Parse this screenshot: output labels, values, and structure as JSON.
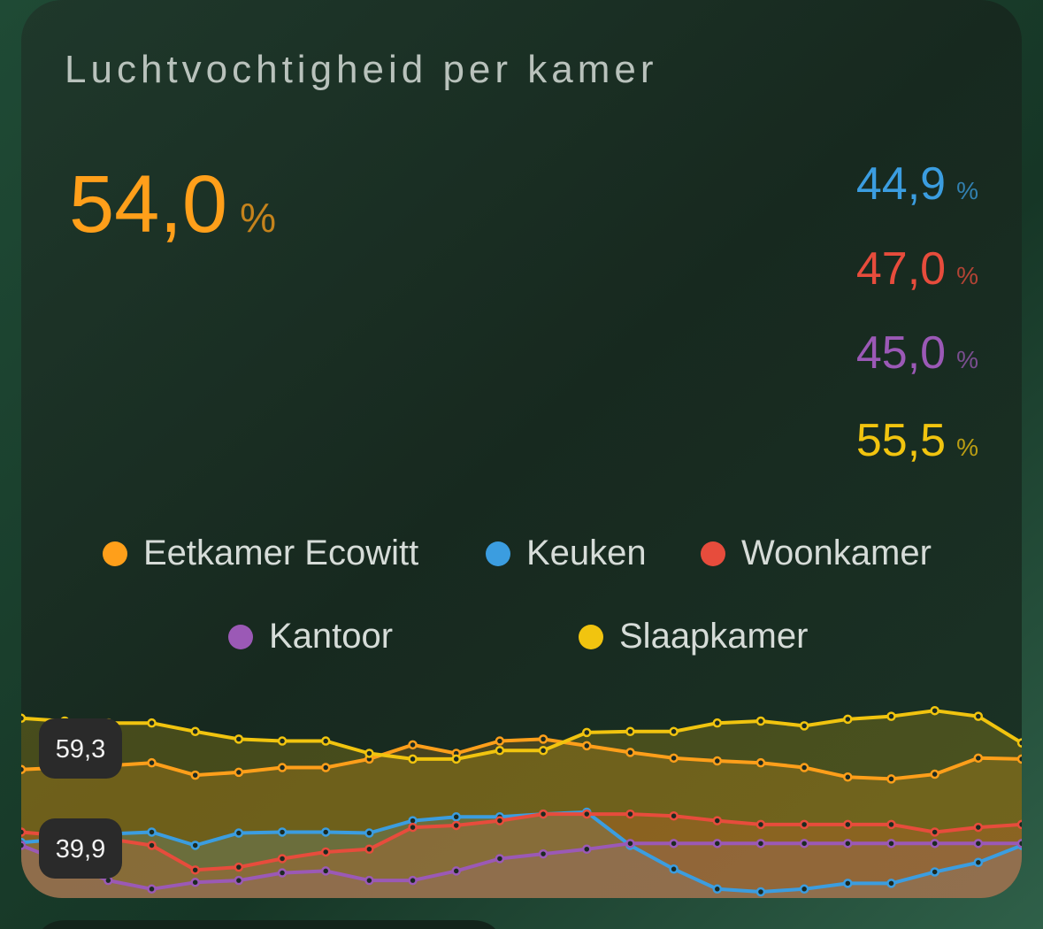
{
  "chart_data": {
    "type": "line",
    "title": "Luchtvochtigheid per kamer",
    "unit": "%",
    "ylim": [
      39.9,
      59.3
    ],
    "yticks": [
      {
        "value": 59.3,
        "label": "59,3"
      },
      {
        "value": 39.9,
        "label": "39,9"
      }
    ],
    "series": [
      {
        "name": "Eetkamer Ecowitt",
        "color": "#ff9f1a",
        "state": "54,0",
        "values": [
          52.8,
          53.0,
          53.2,
          53.5,
          52.2,
          52.5,
          53.0,
          53.0,
          53.9,
          55.4,
          54.5,
          55.8,
          56.0,
          55.3,
          54.6,
          54.0,
          53.7,
          53.5,
          53.0,
          52.0,
          51.8,
          52.3,
          54.0,
          53.9
        ]
      },
      {
        "name": "Keuken",
        "color": "#3b9de0",
        "state": "44,9",
        "values": [
          45.1,
          45.5,
          46.0,
          46.2,
          44.8,
          46.1,
          46.2,
          46.2,
          46.1,
          47.4,
          47.8,
          47.8,
          48.1,
          48.3,
          44.8,
          42.3,
          40.2,
          39.9,
          40.2,
          40.8,
          40.8,
          42.0,
          43.0,
          44.8
        ]
      },
      {
        "name": "Woonkamer",
        "color": "#e74c3c",
        "state": "47,0",
        "values": [
          46.2,
          45.8,
          45.5,
          44.8,
          42.2,
          42.5,
          43.4,
          44.1,
          44.4,
          46.7,
          46.9,
          47.4,
          48.1,
          48.1,
          48.1,
          47.9,
          47.4,
          47.0,
          47.0,
          47.0,
          47.0,
          46.2,
          46.7,
          47.0
        ]
      },
      {
        "name": "Kantoor",
        "color": "#9b59b6",
        "state": "45,0",
        "values": [
          44.8,
          43.0,
          41.1,
          40.2,
          40.9,
          41.1,
          41.9,
          42.1,
          41.1,
          41.1,
          42.1,
          43.4,
          43.9,
          44.4,
          45.0,
          45.0,
          45.0,
          45.0,
          45.0,
          45.0,
          45.0,
          45.0,
          45.0,
          45.0
        ]
      },
      {
        "name": "Slaapkamer",
        "color": "#f1c40f",
        "state": "55,5",
        "values": [
          58.2,
          57.9,
          57.7,
          57.7,
          56.8,
          56.0,
          55.8,
          55.8,
          54.5,
          53.9,
          53.9,
          54.8,
          54.8,
          56.7,
          56.8,
          56.8,
          57.7,
          57.9,
          57.4,
          58.1,
          58.4,
          59.0,
          58.4,
          55.6
        ]
      }
    ]
  }
}
